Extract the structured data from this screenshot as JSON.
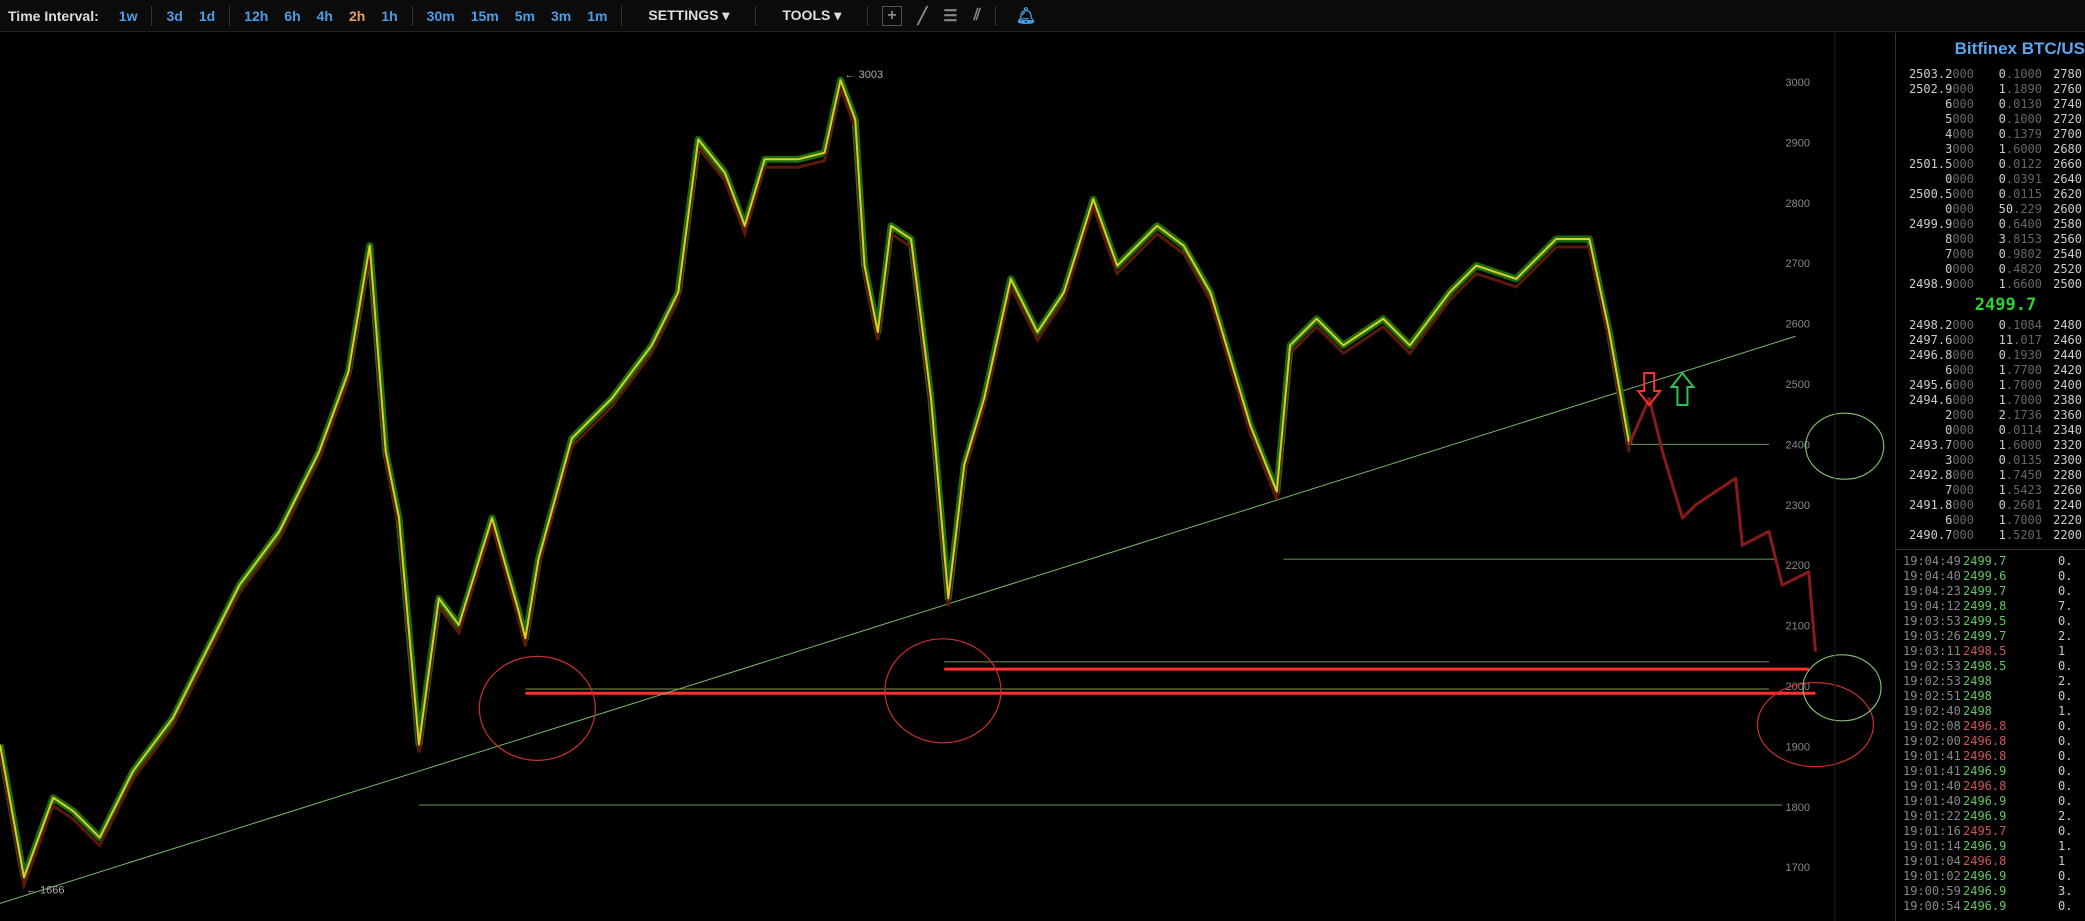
{
  "toolbar": {
    "time_interval_label": "Time Interval:",
    "intervals": [
      "1w",
      "3d",
      "1d",
      "12h",
      "6h",
      "4h",
      "2h",
      "1h",
      "30m",
      "15m",
      "5m",
      "3m",
      "1m"
    ],
    "active_interval": "2h",
    "settings_label": "SETTINGS ▾",
    "tools_label": "TOOLS ▾",
    "tool_icons": [
      "crosshair-icon",
      "line-icon",
      "fib-lines-icon",
      "fan-icon"
    ],
    "bell_icon": "bell-icon"
  },
  "colors": {
    "accent": "#4a9ee8",
    "active": "#e8a060",
    "up": "#5fc85f",
    "down": "#d05555",
    "last": "#2ed42e"
  },
  "chart_data": {
    "type": "line",
    "yaxis_ticks": [
      3000,
      2900,
      2800,
      2700,
      2600,
      2500,
      2400,
      2300,
      2200,
      2100,
      2000,
      1900,
      1800,
      1700
    ],
    "ylim": [
      1630,
      3030
    ],
    "high_label": "← 3003",
    "low_label": "← 1666",
    "price_points": [
      [
        0,
        1903
      ],
      [
        18,
        1683
      ],
      [
        40,
        1815
      ],
      [
        55,
        1793
      ],
      [
        75,
        1749
      ],
      [
        100,
        1859
      ],
      [
        130,
        1947
      ],
      [
        150,
        2035
      ],
      [
        180,
        2167
      ],
      [
        210,
        2256
      ],
      [
        240,
        2388
      ],
      [
        262,
        2520
      ],
      [
        278,
        2729
      ],
      [
        290,
        2388
      ],
      [
        300,
        2278
      ],
      [
        315,
        1903
      ],
      [
        330,
        2145
      ],
      [
        345,
        2101
      ],
      [
        370,
        2278
      ],
      [
        390,
        2123
      ],
      [
        395,
        2079
      ],
      [
        405,
        2211
      ],
      [
        430,
        2410
      ],
      [
        460,
        2476
      ],
      [
        490,
        2564
      ],
      [
        510,
        2652
      ],
      [
        525,
        2905
      ],
      [
        545,
        2850
      ],
      [
        560,
        2762
      ],
      [
        575,
        2872
      ],
      [
        600,
        2872
      ],
      [
        620,
        2883
      ],
      [
        632,
        3003
      ],
      [
        643,
        2938
      ],
      [
        650,
        2696
      ],
      [
        660,
        2586
      ],
      [
        670,
        2762
      ],
      [
        685,
        2740
      ],
      [
        700,
        2476
      ],
      [
        713,
        2145
      ],
      [
        725,
        2366
      ],
      [
        740,
        2476
      ],
      [
        760,
        2674
      ],
      [
        780,
        2586
      ],
      [
        800,
        2652
      ],
      [
        822,
        2806
      ],
      [
        840,
        2696
      ],
      [
        870,
        2762
      ],
      [
        890,
        2729
      ],
      [
        910,
        2652
      ],
      [
        940,
        2432
      ],
      [
        960,
        2322
      ],
      [
        970,
        2564
      ],
      [
        990,
        2608
      ],
      [
        1010,
        2564
      ],
      [
        1040,
        2608
      ],
      [
        1060,
        2564
      ],
      [
        1090,
        2652
      ],
      [
        1110,
        2696
      ],
      [
        1140,
        2674
      ],
      [
        1170,
        2740
      ],
      [
        1195,
        2740
      ],
      [
        1210,
        2586
      ],
      [
        1225,
        2400
      ]
    ],
    "projection_points": [
      [
        1225,
        2400
      ],
      [
        1240,
        2476
      ],
      [
        1250,
        2388
      ],
      [
        1265,
        2278
      ],
      [
        1275,
        2300
      ],
      [
        1290,
        2322
      ],
      [
        1305,
        2344
      ],
      [
        1310,
        2233
      ],
      [
        1330,
        2256
      ],
      [
        1340,
        2167
      ],
      [
        1360,
        2189
      ],
      [
        1365,
        2057
      ]
    ],
    "annotations": {
      "trendline": [
        [
          0,
          1640
        ],
        [
          1350,
          2579
        ]
      ],
      "support_lines_green": [
        [
          1225,
          1330,
          2400
        ],
        [
          965,
          1335,
          2210
        ],
        [
          710,
          1330,
          2040
        ],
        [
          395,
          1330,
          1995
        ],
        [
          315,
          1340,
          1803
        ]
      ],
      "support_lines_red": [
        [
          710,
          1360,
          2028
        ],
        [
          395,
          1365,
          1988
        ]
      ],
      "red_circles": [
        [
          404,
          1963
        ],
        [
          709,
          1992
        ],
        [
          1365,
          1936
        ]
      ],
      "green_ellipses": [
        [
          1387,
          2397
        ],
        [
          1385,
          1997
        ]
      ],
      "arrow_down": [
        1240,
        2485
      ],
      "arrow_up": [
        1265,
        2485
      ]
    }
  },
  "orderbook": {
    "title": "Bitfinex BTC/US",
    "asks": [
      [
        "2503.2",
        "000",
        "0",
        ".1000",
        "2780"
      ],
      [
        "2502.9",
        "000",
        "1",
        ".1890",
        "2760"
      ],
      [
        "6",
        "000",
        "0",
        ".0130",
        "2740"
      ],
      [
        "5",
        "000",
        "0",
        ".1000",
        "2720"
      ],
      [
        "4",
        "000",
        "0",
        ".1379",
        "2700"
      ],
      [
        "3",
        "000",
        "1",
        ".6000",
        "2680"
      ],
      [
        "2501.5",
        "000",
        "0",
        ".0122",
        "2660"
      ],
      [
        "0",
        "000",
        "0",
        ".0391",
        "2640"
      ],
      [
        "2500.5",
        "000",
        "0",
        ".0115",
        "2620"
      ],
      [
        "0",
        "000",
        "50",
        ".229",
        "2600"
      ],
      [
        "2499.9",
        "000",
        "0",
        ".6400",
        "2580"
      ],
      [
        "8",
        "000",
        "3",
        ".8153",
        "2560"
      ],
      [
        "7",
        "000",
        "0",
        ".9802",
        "2540"
      ],
      [
        "0",
        "000",
        "0",
        ".4820",
        "2520"
      ],
      [
        "2498.9",
        "000",
        "1",
        ".6600",
        "2500"
      ]
    ],
    "last_price": "2499.7",
    "bids": [
      [
        "2498.2",
        "000",
        "0",
        ".1084",
        "2480"
      ],
      [
        "2497.6",
        "000",
        "11",
        ".017",
        "2460"
      ],
      [
        "2496.8",
        "000",
        "0",
        ".1930",
        "2440"
      ],
      [
        "6",
        "000",
        "1",
        ".7700",
        "2420"
      ],
      [
        "2495.6",
        "000",
        "1",
        ".7000",
        "2400"
      ],
      [
        "2494.6",
        "000",
        "1",
        ".7000",
        "2380"
      ],
      [
        "2",
        "000",
        "2",
        ".1736",
        "2360"
      ],
      [
        "0",
        "000",
        "0",
        ".0114",
        "2340"
      ],
      [
        "2493.7",
        "000",
        "1",
        ".6000",
        "2320"
      ],
      [
        "3",
        "000",
        "0",
        ".0135",
        "2300"
      ],
      [
        "2492.8",
        "000",
        "1",
        ".7450",
        "2280"
      ],
      [
        "7",
        "000",
        "1",
        ".5423",
        "2260"
      ],
      [
        "2491.8",
        "000",
        "0",
        ".2601",
        "2240"
      ],
      [
        "6",
        "000",
        "1",
        ".7000",
        "2220"
      ],
      [
        "2490.7",
        "000",
        "1",
        ".5201",
        "2200"
      ]
    ],
    "trades": [
      [
        "19:04:49",
        "2499.7",
        "up",
        "0."
      ],
      [
        "19:04:40",
        "2499.6",
        "up",
        "0."
      ],
      [
        "19:04:23",
        "2499.7",
        "up",
        "0."
      ],
      [
        "19:04:12",
        "2499.8",
        "up",
        "7."
      ],
      [
        "19:03:53",
        "2499.5",
        "up",
        "0."
      ],
      [
        "19:03:26",
        "2499.7",
        "up",
        "2."
      ],
      [
        "19:03:11",
        "2498.5",
        "down",
        "1"
      ],
      [
        "19:02:53",
        "2498.5",
        "up",
        "0."
      ],
      [
        "19:02:53",
        "2498",
        "up",
        "2."
      ],
      [
        "19:02:51",
        "2498",
        "up",
        "0."
      ],
      [
        "19:02:40",
        "2498",
        "up",
        "1."
      ],
      [
        "19:02:08",
        "2496.8",
        "down",
        "0."
      ],
      [
        "19:02:00",
        "2496.8",
        "down",
        "0."
      ],
      [
        "19:01:41",
        "2496.8",
        "down",
        "0."
      ],
      [
        "19:01:41",
        "2496.9",
        "up",
        "0."
      ],
      [
        "19:01:40",
        "2496.8",
        "down",
        "0."
      ],
      [
        "19:01:40",
        "2496.9",
        "up",
        "0."
      ],
      [
        "19:01:22",
        "2496.9",
        "up",
        "2."
      ],
      [
        "19:01:16",
        "2495.7",
        "down",
        "0."
      ],
      [
        "19:01:14",
        "2496.9",
        "up",
        "1."
      ],
      [
        "19:01:04",
        "2496.8",
        "down",
        "1"
      ],
      [
        "19:01:02",
        "2496.9",
        "up",
        "0."
      ],
      [
        "19:00:59",
        "2496.9",
        "up",
        "3."
      ],
      [
        "19:00:54",
        "2496.9",
        "up",
        "0."
      ]
    ]
  }
}
